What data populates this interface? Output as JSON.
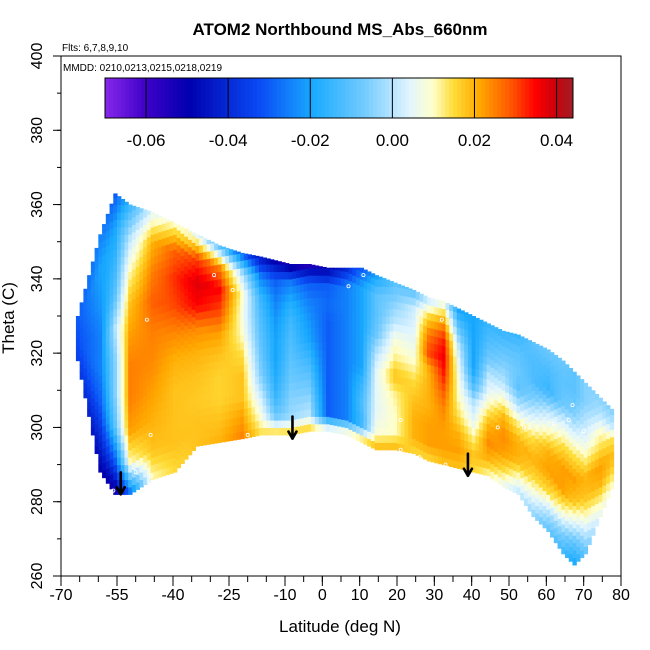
{
  "chart_data": {
    "type": "heatmap",
    "title": "ATOM2 Northbound MS_Abs_660nm",
    "annotations": [
      "Flts: 6,7,8,9,10",
      "MMDD: 0210,0213,0215,0218,0219"
    ],
    "xlabel": "Latitude (deg N)",
    "ylabel": "Theta (C)",
    "xlim": [
      -70,
      80
    ],
    "ylim": [
      260,
      400
    ],
    "x_ticks": [
      -70,
      -55,
      -40,
      -25,
      -10,
      0,
      10,
      20,
      30,
      40,
      50,
      60,
      70,
      80
    ],
    "x_tick_labels": [
      "-70",
      "-55",
      "-40",
      "-25",
      "-10",
      "0",
      "10",
      "20",
      "30",
      "40",
      "50",
      "60",
      "70",
      "80"
    ],
    "y_ticks": [
      260,
      280,
      300,
      320,
      340,
      360,
      380,
      400
    ],
    "y_tick_labels": [
      "260",
      "280",
      "300",
      "320",
      "340",
      "360",
      "380",
      "400"
    ],
    "colorbar": {
      "range": [
        -0.07,
        0.044
      ],
      "ticks": [
        -0.06,
        -0.04,
        -0.02,
        0.0,
        0.02,
        0.04
      ],
      "tick_labels": [
        "-0.06",
        "-0.04",
        "-0.02",
        "0.00",
        "0.02",
        "0.04"
      ]
    },
    "columns": [
      {
        "lat": -66,
        "bottom": 318,
        "top": 330,
        "values": [
          -0.035,
          -0.032,
          -0.03
        ]
      },
      {
        "lat": -60,
        "bottom": 288,
        "top": 352,
        "values": [
          -0.05,
          -0.04,
          -0.03,
          -0.025,
          -0.025,
          -0.022,
          -0.02,
          -0.025
        ]
      },
      {
        "lat": -56,
        "bottom": 282,
        "top": 363,
        "values": [
          -0.055,
          -0.03,
          -0.01,
          -0.005,
          -0.005,
          0.0,
          -0.01,
          -0.015,
          -0.02,
          -0.03
        ]
      },
      {
        "lat": -52,
        "bottom": 282,
        "top": 360,
        "values": [
          -0.03,
          0.01,
          0.022,
          0.025,
          0.025,
          0.022,
          0.018,
          0.01,
          0.0,
          -0.015
        ]
      },
      {
        "lat": -46,
        "bottom": 286,
        "top": 358,
        "values": [
          0.01,
          0.018,
          0.02,
          0.022,
          0.024,
          0.025,
          0.028,
          0.025,
          0.02,
          0.005
        ]
      },
      {
        "lat": -40,
        "bottom": 288,
        "top": 355,
        "values": [
          0.015,
          0.018,
          0.018,
          0.018,
          0.02,
          0.024,
          0.03,
          0.032,
          0.028,
          0.01
        ]
      },
      {
        "lat": -34,
        "bottom": 295,
        "top": 352,
        "values": [
          0.018,
          0.018,
          0.017,
          0.018,
          0.02,
          0.024,
          0.035,
          0.038,
          0.03,
          0.005
        ]
      },
      {
        "lat": -28,
        "bottom": 296,
        "top": 349,
        "values": [
          0.02,
          0.018,
          0.016,
          0.016,
          0.018,
          0.022,
          0.03,
          0.035,
          0.025,
          -0.01
        ]
      },
      {
        "lat": -22,
        "bottom": 297,
        "top": 347,
        "values": [
          0.025,
          0.022,
          0.018,
          0.018,
          0.015,
          0.01,
          0.008,
          0.01,
          0.0,
          -0.03
        ]
      },
      {
        "lat": -17,
        "bottom": 298,
        "top": 346,
        "values": [
          0.015,
          0.008,
          0.002,
          -0.005,
          -0.008,
          -0.01,
          -0.012,
          -0.015,
          -0.025,
          -0.045
        ]
      },
      {
        "lat": -13,
        "bottom": 298,
        "top": 345,
        "values": [
          0.018,
          -0.008,
          -0.015,
          -0.018,
          -0.02,
          -0.02,
          -0.022,
          -0.025,
          -0.03,
          -0.05
        ]
      },
      {
        "lat": -9,
        "bottom": 298,
        "top": 344,
        "values": [
          0.018,
          -0.003,
          -0.005,
          -0.008,
          -0.01,
          -0.012,
          -0.014,
          -0.018,
          -0.025,
          -0.055
        ]
      },
      {
        "lat": -4,
        "bottom": 299,
        "top": 344,
        "values": [
          0.018,
          0.0,
          -0.005,
          -0.01,
          -0.015,
          -0.02,
          -0.022,
          -0.025,
          -0.03,
          -0.055
        ]
      },
      {
        "lat": 1,
        "bottom": 299,
        "top": 343,
        "values": [
          0.012,
          -0.03,
          -0.03,
          -0.03,
          -0.03,
          -0.03,
          -0.03,
          -0.028,
          -0.03,
          -0.05
        ]
      },
      {
        "lat": 6,
        "bottom": 298,
        "top": 343,
        "values": [
          0.015,
          -0.025,
          -0.025,
          -0.025,
          -0.025,
          -0.025,
          -0.025,
          -0.025,
          -0.025,
          -0.04
        ]
      },
      {
        "lat": 10,
        "bottom": 296,
        "top": 343,
        "values": [
          0.018,
          -0.015,
          -0.012,
          -0.015,
          -0.02,
          -0.02,
          -0.02,
          -0.02,
          -0.02,
          -0.03
        ]
      },
      {
        "lat": 14,
        "bottom": 294,
        "top": 341,
        "values": [
          0.02,
          0.008,
          0.005,
          0.005,
          0.005,
          0.0,
          -0.008,
          -0.01,
          -0.01,
          -0.02
        ]
      },
      {
        "lat": 19,
        "bottom": 294,
        "top": 339,
        "values": [
          0.02,
          0.01,
          0.01,
          0.012,
          0.018,
          0.012,
          0.008,
          0.0,
          -0.005,
          -0.01
        ]
      },
      {
        "lat": 24,
        "bottom": 293,
        "top": 337,
        "values": [
          0.015,
          0.02,
          0.02,
          0.018,
          0.015,
          0.01,
          0.006,
          0.004,
          0.002,
          -0.01
        ]
      },
      {
        "lat": 28,
        "bottom": 291,
        "top": 335,
        "values": [
          0.015,
          0.022,
          0.022,
          0.02,
          0.02,
          0.02,
          0.03,
          0.025,
          0.015,
          0.0
        ]
      },
      {
        "lat": 32,
        "bottom": 290,
        "top": 334,
        "values": [
          0.018,
          0.022,
          0.022,
          0.024,
          0.028,
          0.033,
          0.036,
          0.032,
          0.02,
          0.005
        ]
      },
      {
        "lat": 36,
        "bottom": 289,
        "top": 332,
        "values": [
          0.018,
          0.022,
          0.02,
          0.014,
          0.01,
          0.008,
          0.005,
          0.0,
          -0.01,
          -0.02
        ]
      },
      {
        "lat": 40,
        "bottom": 288,
        "top": 330,
        "values": [
          0.015,
          0.018,
          0.012,
          0.005,
          0.0,
          -0.012,
          -0.02,
          -0.02,
          -0.02,
          -0.02
        ]
      },
      {
        "lat": 44,
        "bottom": 287,
        "top": 328,
        "values": [
          0.01,
          0.02,
          0.024,
          0.02,
          0.012,
          0.005,
          0.0,
          -0.008,
          -0.012,
          -0.015
        ]
      },
      {
        "lat": 48,
        "bottom": 284,
        "top": 326,
        "values": [
          0.005,
          0.015,
          0.022,
          0.024,
          0.02,
          0.01,
          0.0,
          -0.005,
          -0.01,
          -0.015
        ]
      },
      {
        "lat": 52,
        "bottom": 282,
        "top": 325,
        "values": [
          0.0,
          0.01,
          0.02,
          0.02,
          0.012,
          0.0,
          -0.01,
          -0.008,
          -0.01,
          -0.015
        ]
      },
      {
        "lat": 56,
        "bottom": 276,
        "top": 323,
        "values": [
          -0.005,
          0.005,
          0.015,
          0.02,
          0.015,
          0.005,
          -0.005,
          -0.012,
          -0.012,
          -0.01
        ]
      },
      {
        "lat": 60,
        "bottom": 272,
        "top": 321,
        "values": [
          -0.01,
          0.0,
          0.015,
          0.022,
          0.02,
          0.01,
          0.0,
          -0.015,
          -0.012,
          -0.008
        ]
      },
      {
        "lat": 64,
        "bottom": 266,
        "top": 318,
        "values": [
          -0.015,
          -0.005,
          0.01,
          0.022,
          0.022,
          0.015,
          0.005,
          -0.008,
          -0.01,
          -0.008
        ]
      },
      {
        "lat": 67,
        "bottom": 263,
        "top": 315,
        "values": [
          -0.02,
          -0.01,
          0.005,
          0.018,
          0.022,
          0.015,
          0.005,
          -0.005,
          -0.01,
          -0.01
        ]
      },
      {
        "lat": 70,
        "bottom": 266,
        "top": 312,
        "values": [
          -0.01,
          0.0,
          0.01,
          0.018,
          0.02,
          0.012,
          0.005,
          0.0,
          -0.005,
          -0.005
        ]
      },
      {
        "lat": 74,
        "bottom": 276,
        "top": 308,
        "values": [
          0.005,
          0.012,
          0.02,
          0.022,
          0.015,
          0.01,
          0.0,
          -0.005
        ]
      },
      {
        "lat": 78,
        "bottom": 286,
        "top": 304,
        "values": [
          0.01,
          0.015,
          0.018,
          0.015,
          0.0,
          -0.005
        ]
      }
    ],
    "sample_points": [
      {
        "lat": -47,
        "theta": 329
      },
      {
        "lat": -29,
        "theta": 341
      },
      {
        "lat": -24,
        "theta": 337
      },
      {
        "lat": 7,
        "theta": 338
      },
      {
        "lat": 11,
        "theta": 341
      },
      {
        "lat": 32,
        "theta": 329
      },
      {
        "lat": -46,
        "theta": 298
      },
      {
        "lat": -50,
        "theta": 288
      },
      {
        "lat": -46,
        "theta": 287
      },
      {
        "lat": -20,
        "theta": 298
      },
      {
        "lat": 21,
        "theta": 302
      },
      {
        "lat": 21,
        "theta": 294
      },
      {
        "lat": 26,
        "theta": 292
      },
      {
        "lat": 33,
        "theta": 290
      },
      {
        "lat": 47,
        "theta": 300
      },
      {
        "lat": 54,
        "theta": 300
      },
      {
        "lat": 62,
        "theta": 301
      },
      {
        "lat": 66,
        "theta": 302
      },
      {
        "lat": 67,
        "theta": 306
      },
      {
        "lat": 70,
        "theta": 299
      },
      {
        "lat": 69,
        "theta": 319
      },
      {
        "lat": -56,
        "theta": 283
      }
    ],
    "arrows": [
      {
        "lat": -54,
        "theta": 282
      },
      {
        "lat": -8,
        "theta": 297
      },
      {
        "lat": 39,
        "theta": 287
      }
    ]
  }
}
